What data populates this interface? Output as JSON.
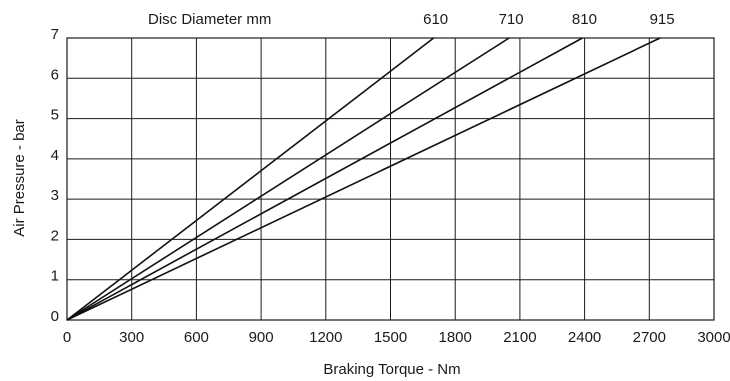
{
  "chart_data": {
    "type": "line",
    "title": "Disc Diameter mm",
    "xlabel": "Braking Torque - Nm",
    "ylabel": "Air Pressure - bar",
    "xlim": [
      0,
      3000
    ],
    "ylim": [
      0,
      7
    ],
    "x_ticks": [
      "0",
      "300",
      "600",
      "900",
      "1200",
      "1500",
      "1800",
      "2100",
      "2400",
      "2700",
      "3000"
    ],
    "y_ticks": [
      "0",
      "1",
      "2",
      "3",
      "4",
      "5",
      "6",
      "7"
    ],
    "grid": true,
    "series": [
      {
        "name": "610",
        "x": [
          0,
          1700
        ],
        "y": [
          0,
          7
        ]
      },
      {
        "name": "710",
        "x": [
          0,
          2050
        ],
        "y": [
          0,
          7
        ]
      },
      {
        "name": "810",
        "x": [
          0,
          2390
        ],
        "y": [
          0,
          7
        ]
      },
      {
        "name": "915",
        "x": [
          0,
          2750
        ],
        "y": [
          0,
          7
        ]
      }
    ]
  }
}
